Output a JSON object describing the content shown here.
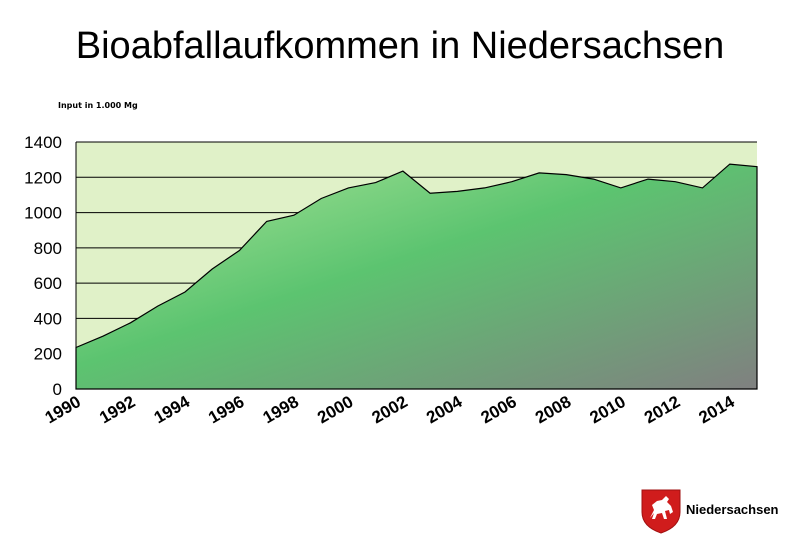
{
  "chart_data": {
    "type": "area",
    "title": "Bioabfallaufkommen in Niedersachsen",
    "ylabel": "Input in 1.000 Mg",
    "xlabel": "",
    "x": [
      1990,
      1991,
      1992,
      1993,
      1994,
      1995,
      1996,
      1997,
      1998,
      1999,
      2000,
      2001,
      2002,
      2003,
      2004,
      2005,
      2006,
      2007,
      2008,
      2009,
      2010,
      2011,
      2012,
      2013,
      2014,
      2015
    ],
    "values": [
      235,
      300,
      375,
      470,
      550,
      680,
      785,
      950,
      985,
      1080,
      1140,
      1170,
      1235,
      1110,
      1120,
      1140,
      1175,
      1225,
      1215,
      1190,
      1140,
      1190,
      1175,
      1140,
      1275,
      1260
    ],
    "ylim": [
      0,
      1400
    ],
    "yticks": [
      0,
      200,
      400,
      600,
      800,
      1000,
      1200,
      1400
    ],
    "xticks": [
      "1990",
      "1992",
      "1994",
      "1996",
      "1998",
      "2000",
      "2002",
      "2004",
      "2006",
      "2008",
      "2010",
      "2012",
      "2014"
    ],
    "grid": true,
    "colors": {
      "plot_background": "#e0f1c8",
      "area_light": "#8fd88a",
      "area_mid": "#5cc470",
      "area_dark": "#7d7d7d",
      "outline": "#000000"
    }
  },
  "branding": {
    "name": "Niedersachsen",
    "logo": "horse-crest-logo"
  }
}
